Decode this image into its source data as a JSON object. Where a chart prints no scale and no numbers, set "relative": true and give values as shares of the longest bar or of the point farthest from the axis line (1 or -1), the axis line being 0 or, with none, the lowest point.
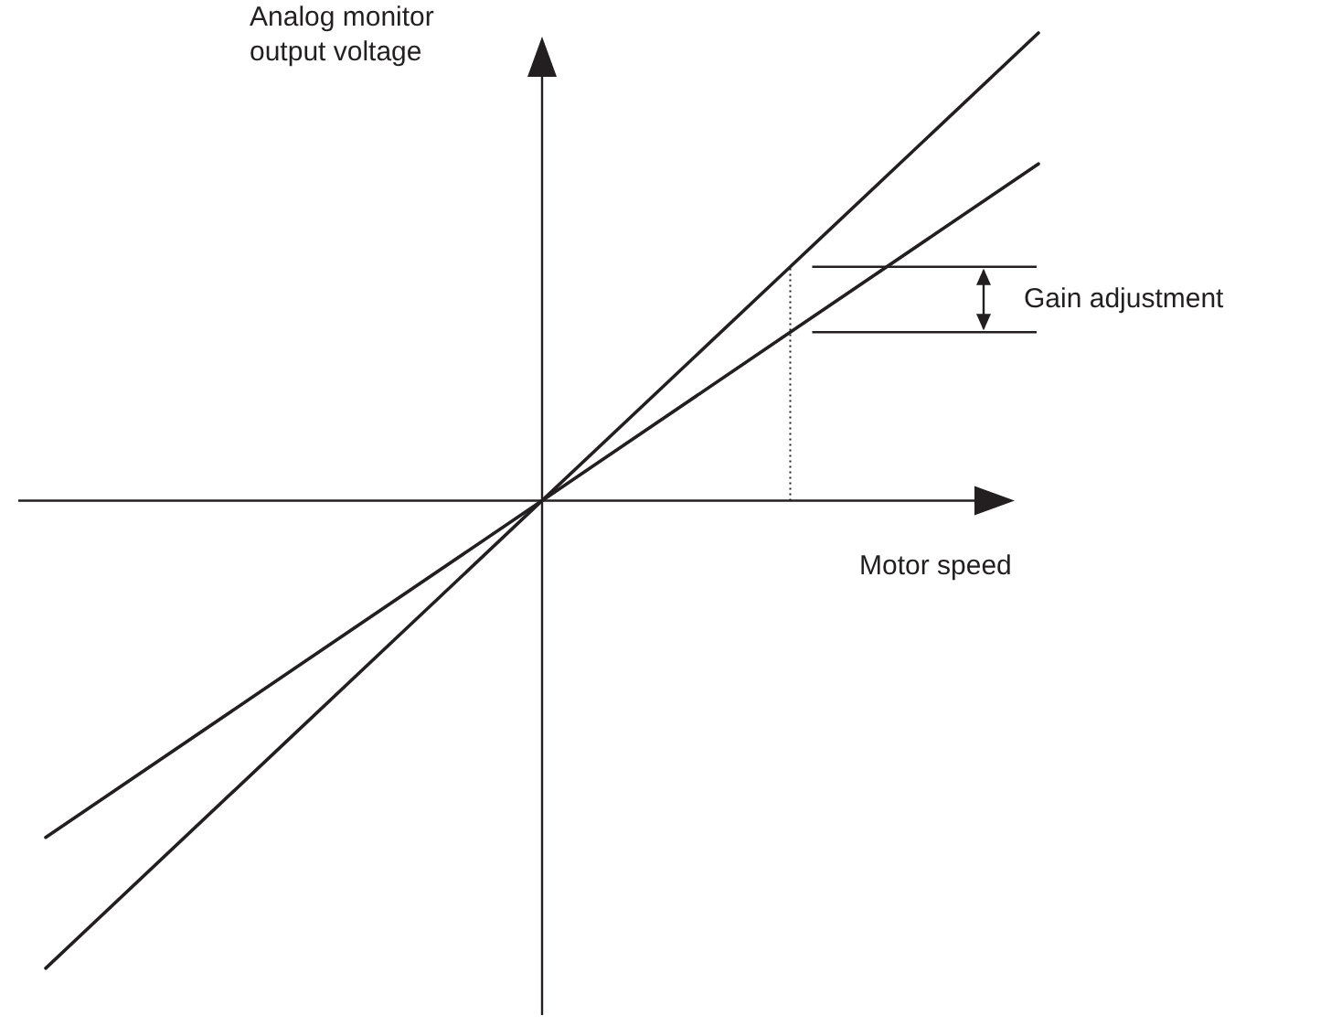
{
  "chart_data": {
    "type": "line",
    "relative": true,
    "xlabel": "Motor speed",
    "ylabel": "Analog monitor output voltage",
    "annotations": [
      "Gain adjustment"
    ],
    "categories": [
      null,
      null,
      null,
      null,
      null
    ],
    "series": [
      {
        "color": "#231f20",
        "values": [
          -1,
          -0.5,
          0,
          0.5,
          1
        ]
      },
      {
        "color": "#231f20",
        "values": [
          -0.72,
          -0.36,
          0,
          0.36,
          0.72
        ]
      }
    ],
    "marker": "none",
    "line_style": "solid"
  }
}
